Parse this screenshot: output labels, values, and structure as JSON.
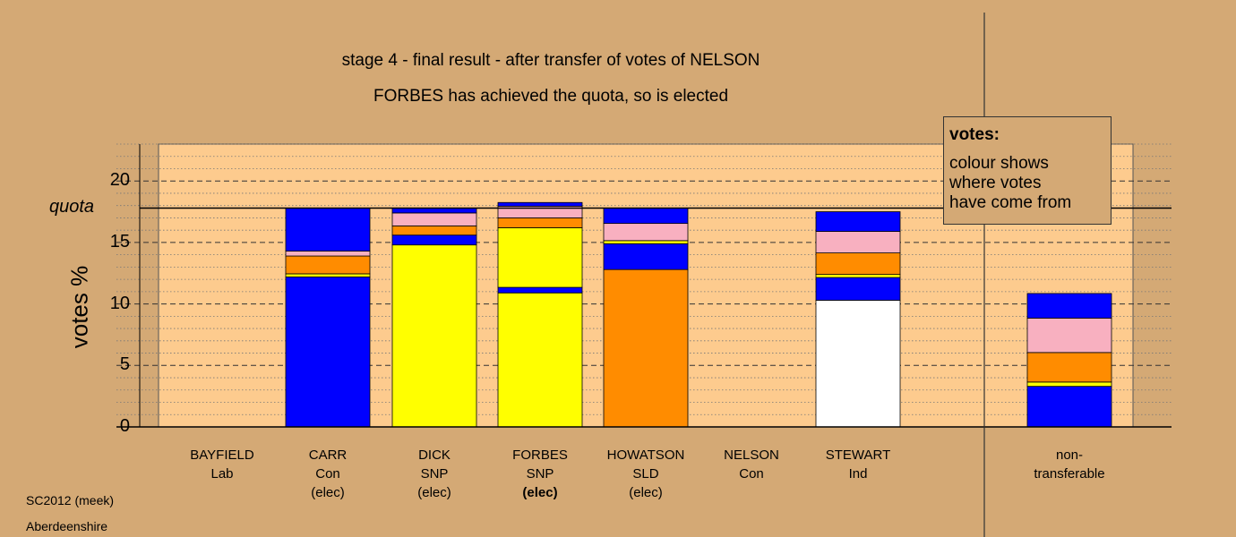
{
  "chart_data": {
    "type": "bar",
    "stacked": true,
    "title": "stage 4 - final result - after transfer of votes of NELSON",
    "subtitle": "FORBES has achieved the quota, so is elected",
    "ylabel": "votes %",
    "ylim": [
      0,
      23
    ],
    "yticks": [
      0,
      5,
      10,
      15,
      20
    ],
    "quota": 17.8,
    "quota_label": "quota",
    "grid": true,
    "legend_placement": "top-right",
    "legend": {
      "title": "votes:",
      "lines": [
        "colour shows",
        "where votes",
        "have come from"
      ]
    },
    "categories": [
      {
        "name": "BAYFIELD",
        "party": "Lab",
        "status": ""
      },
      {
        "name": "CARR",
        "party": "Con",
        "status": "(elec)"
      },
      {
        "name": "DICK",
        "party": "SNP",
        "status": "(elec)"
      },
      {
        "name": "FORBES",
        "party": "SNP",
        "status": "(elec)",
        "status_bold": true
      },
      {
        "name": "HOWATSON",
        "party": "SLD",
        "status": "(elec)"
      },
      {
        "name": "NELSON",
        "party": "Con",
        "status": ""
      },
      {
        "name": "STEWART",
        "party": "Ind",
        "status": ""
      },
      {
        "name": "non-",
        "party": "transferable",
        "status": "",
        "separate": true
      }
    ],
    "stacks": [
      [],
      [
        {
          "value": 12.2,
          "color": "#0000ff"
        },
        {
          "value": 0.25,
          "color": "#ffff00"
        },
        {
          "value": 1.45,
          "color": "#ff8c00"
        },
        {
          "value": 0.4,
          "color": "#f8b0c0"
        },
        {
          "value": 3.5,
          "color": "#0000ff"
        }
      ],
      [
        {
          "value": 14.8,
          "color": "#ffff00"
        },
        {
          "value": 0.8,
          "color": "#0000ff"
        },
        {
          "value": 0.75,
          "color": "#ff8c00"
        },
        {
          "value": 1.05,
          "color": "#f8b0c0"
        },
        {
          "value": 0.4,
          "color": "#0000ff"
        }
      ],
      [
        {
          "value": 10.9,
          "color": "#ffff00"
        },
        {
          "value": 0.45,
          "color": "#0000ff"
        },
        {
          "value": 4.85,
          "color": "#ffff00"
        },
        {
          "value": 0.8,
          "color": "#ff8c00"
        },
        {
          "value": 0.95,
          "color": "#f8b0c0"
        },
        {
          "value": 0.3,
          "color": "#0000ff"
        }
      ],
      [
        {
          "value": 12.8,
          "color": "#ff8c00"
        },
        {
          "value": 2.1,
          "color": "#0000ff"
        },
        {
          "value": 0.25,
          "color": "#ffff00"
        },
        {
          "value": 1.4,
          "color": "#f8b0c0"
        },
        {
          "value": 1.25,
          "color": "#0000ff"
        }
      ],
      [],
      [
        {
          "value": 10.3,
          "color": "#ffffff"
        },
        {
          "value": 1.85,
          "color": "#0000ff"
        },
        {
          "value": 0.25,
          "color": "#ffff00"
        },
        {
          "value": 1.75,
          "color": "#ff8c00"
        },
        {
          "value": 1.75,
          "color": "#f8b0c0"
        },
        {
          "value": 1.6,
          "color": "#0000ff"
        }
      ],
      [
        {
          "value": 3.3,
          "color": "#0000ff"
        },
        {
          "value": 0.35,
          "color": "#ffff00"
        },
        {
          "value": 2.4,
          "color": "#ff8c00"
        },
        {
          "value": 2.8,
          "color": "#f8b0c0"
        },
        {
          "value": 2.0,
          "color": "#0000ff"
        }
      ]
    ]
  },
  "colors": {
    "background": "#d4a975",
    "plot_area": "#fdcb8e"
  },
  "footer": {
    "line1": "SC2012 (meek)",
    "line2": "Aberdeenshire"
  }
}
